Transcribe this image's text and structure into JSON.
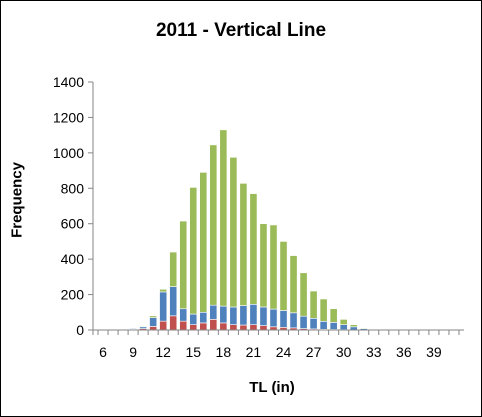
{
  "chart_data": {
    "type": "bar",
    "stacked": true,
    "title": "2011 - Vertical Line",
    "xlabel": "TL (in)",
    "ylabel": "Frequency",
    "ylim": [
      0,
      1400
    ],
    "yticks": [
      0,
      200,
      400,
      600,
      800,
      1000,
      1200,
      1400
    ],
    "xlim": [
      5,
      42
    ],
    "xticks": [
      6,
      9,
      12,
      15,
      18,
      21,
      24,
      27,
      30,
      33,
      36,
      39
    ],
    "grid": false,
    "legend": "none",
    "x": [
      6,
      7,
      8,
      9,
      10,
      11,
      12,
      13,
      14,
      15,
      16,
      17,
      18,
      19,
      20,
      21,
      22,
      23,
      24,
      25,
      26,
      27,
      28,
      29,
      30,
      31,
      32,
      33,
      34,
      35,
      36,
      37,
      38,
      39,
      40,
      41
    ],
    "series": [
      {
        "color": "#c0504d",
        "values": [
          0,
          0,
          2,
          4,
          8,
          20,
          50,
          80,
          50,
          30,
          40,
          60,
          40,
          30,
          28,
          30,
          25,
          18,
          15,
          12,
          8,
          6,
          4,
          3,
          2,
          1,
          1,
          0,
          0,
          0,
          0,
          0,
          0,
          0,
          0,
          0
        ]
      },
      {
        "color": "#4f81bd",
        "values": [
          0,
          0,
          2,
          5,
          10,
          50,
          165,
          165,
          70,
          60,
          60,
          80,
          95,
          100,
          110,
          115,
          105,
          100,
          95,
          85,
          70,
          60,
          45,
          40,
          28,
          17,
          7,
          2,
          1,
          0,
          0,
          0,
          0,
          0,
          0,
          0
        ]
      },
      {
        "color": "#9bbb59",
        "values": [
          0,
          0,
          0,
          1,
          4,
          10,
          15,
          195,
          495,
          715,
          790,
          905,
          995,
          845,
          690,
          625,
          470,
          475,
          390,
          323,
          245,
          154,
          126,
          77,
          30,
          12,
          4,
          1,
          1,
          1,
          0,
          0,
          0,
          0,
          0,
          0
        ]
      }
    ]
  }
}
